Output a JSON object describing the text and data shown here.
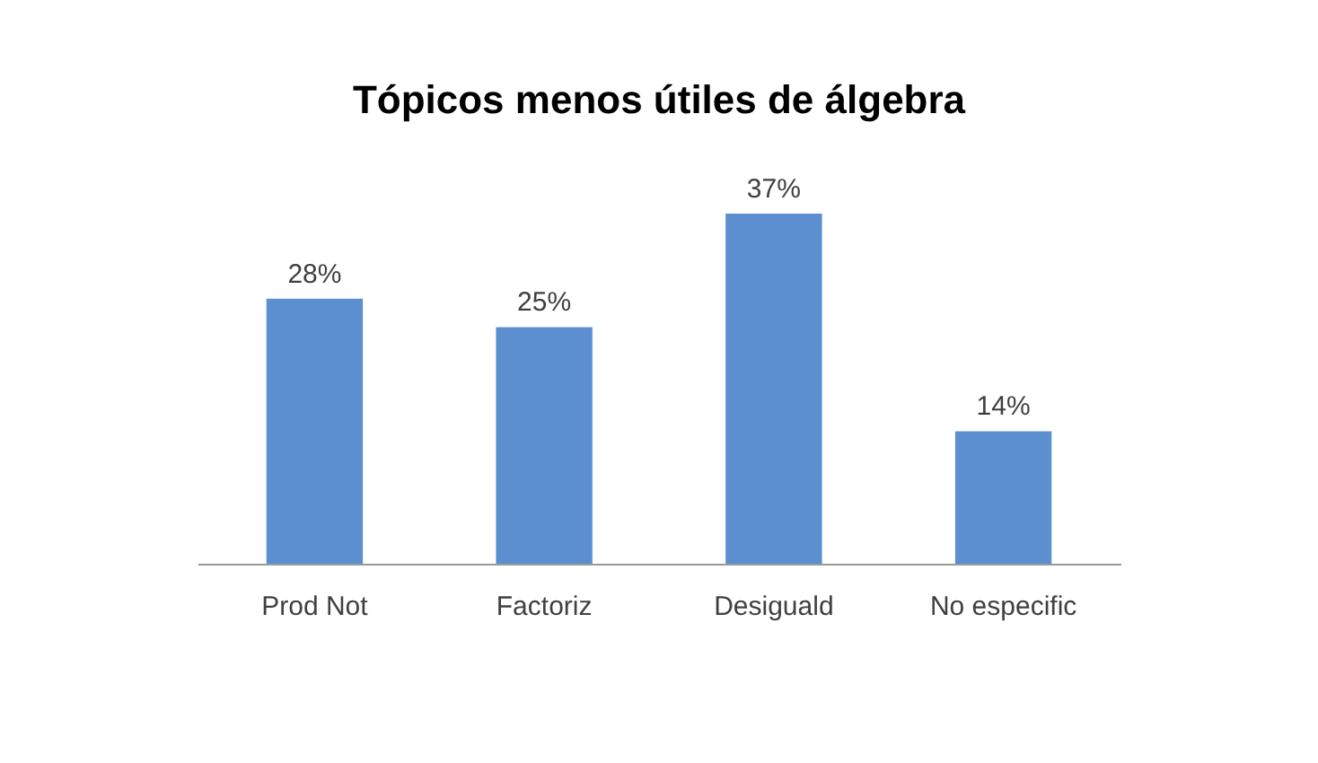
{
  "chart_data": {
    "type": "bar",
    "title": "Tópicos menos útiles de álgebra",
    "categories": [
      "Prod Not",
      "Factoriz",
      "Desiguald",
      "No especific"
    ],
    "values": [
      28,
      25,
      37,
      14
    ],
    "value_labels": [
      "28%",
      "25%",
      "37%",
      "14%"
    ],
    "color": "#5b8fd0"
  }
}
